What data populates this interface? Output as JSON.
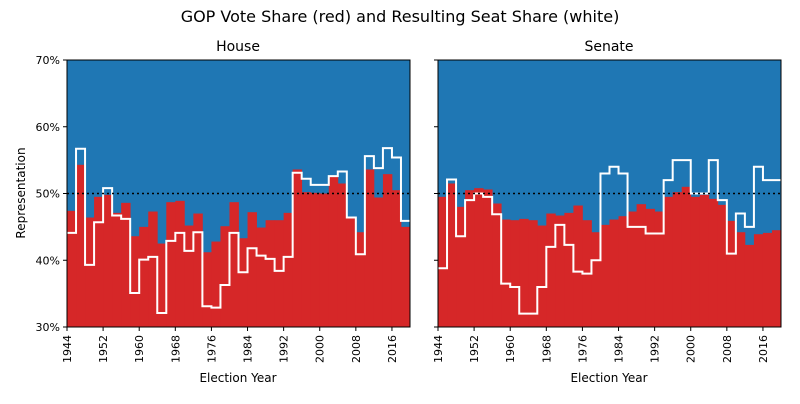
{
  "title": "GOP Vote Share (red) and Resulting Seat Share (white)",
  "colors": {
    "vote": "#d62728",
    "background": "#1f77b4",
    "seat": "#ffffff",
    "reference": "#000000"
  },
  "chart_data": [
    {
      "type": "area",
      "title": "House",
      "xlabel": "Election Year",
      "ylabel": "Representation",
      "xlim": [
        1944,
        2020
      ],
      "ylim": [
        30,
        70
      ],
      "xticks": [
        "1944",
        "1952",
        "1960",
        "1968",
        "1976",
        "1984",
        "1992",
        "2000",
        "2008",
        "2016"
      ],
      "yticks": [
        "30%",
        "40%",
        "50%",
        "60%",
        "70%"
      ],
      "reference_line": 50,
      "x": [
        1944,
        1946,
        1948,
        1950,
        1952,
        1954,
        1956,
        1958,
        1960,
        1962,
        1964,
        1966,
        1968,
        1970,
        1972,
        1974,
        1976,
        1978,
        1980,
        1982,
        1984,
        1986,
        1988,
        1990,
        1992,
        1994,
        1996,
        1998,
        2000,
        2002,
        2004,
        2006,
        2008,
        2010,
        2012,
        2014,
        2016,
        2018
      ],
      "series": [
        {
          "name": "GOP Vote Share",
          "values": [
            47.4,
            54.3,
            46.4,
            49.5,
            49.8,
            47.1,
            48.6,
            43.6,
            45.0,
            47.3,
            42.5,
            48.7,
            48.9,
            45.2,
            47.0,
            41.2,
            42.8,
            45.1,
            48.7,
            43.3,
            47.2,
            44.9,
            46.0,
            46.0,
            47.1,
            53.6,
            50.2,
            50.1,
            50.0,
            52.7,
            51.5,
            46.3,
            44.2,
            53.6,
            49.4,
            52.9,
            50.5,
            45.0
          ]
        },
        {
          "name": "Resulting Seat Share",
          "values": [
            44.1,
            56.7,
            39.3,
            45.7,
            50.8,
            46.7,
            46.2,
            35.1,
            40.1,
            40.5,
            32.1,
            42.9,
            44.1,
            41.4,
            44.2,
            33.1,
            32.9,
            36.3,
            44.1,
            38.2,
            41.8,
            40.7,
            40.2,
            38.4,
            40.5,
            53.1,
            52.2,
            51.3,
            51.3,
            52.6,
            53.3,
            46.4,
            40.9,
            55.6,
            53.8,
            56.8,
            55.4,
            45.9
          ]
        }
      ]
    },
    {
      "type": "area",
      "title": "Senate",
      "xlabel": "Election Year",
      "ylabel": "",
      "xlim": [
        1944,
        2020
      ],
      "ylim": [
        30,
        70
      ],
      "xticks": [
        "1944",
        "1952",
        "1960",
        "1968",
        "1976",
        "1984",
        "1992",
        "2000",
        "2008",
        "2016"
      ],
      "yticks": [
        "30%",
        "40%",
        "50%",
        "60%",
        "70%"
      ],
      "reference_line": 50,
      "x": [
        1944,
        1946,
        1948,
        1950,
        1952,
        1954,
        1956,
        1958,
        1960,
        1962,
        1964,
        1966,
        1968,
        1970,
        1972,
        1974,
        1976,
        1978,
        1980,
        1982,
        1984,
        1986,
        1988,
        1990,
        1992,
        1994,
        1996,
        1998,
        2000,
        2002,
        2004,
        2006,
        2008,
        2010,
        2012,
        2014,
        2016,
        2018
      ],
      "series": [
        {
          "name": "GOP Vote Share",
          "values": [
            49.5,
            51.5,
            48.0,
            50.5,
            50.8,
            50.6,
            48.5,
            46.1,
            46.0,
            46.2,
            46.0,
            45.2,
            47.0,
            46.7,
            47.1,
            48.2,
            46.0,
            44.2,
            45.3,
            46.1,
            46.6,
            47.3,
            48.4,
            47.7,
            47.3,
            49.5,
            50.2,
            51.0,
            49.5,
            49.8,
            49.2,
            48.3,
            45.9,
            44.2,
            42.3,
            43.9,
            44.1,
            44.5
          ]
        },
        {
          "name": "Resulting Seat Share",
          "values": [
            38.8,
            52.1,
            43.6,
            49.0,
            50.0,
            49.5,
            46.9,
            36.5,
            36.0,
            32.0,
            32.0,
            36.0,
            42.0,
            45.3,
            42.3,
            38.3,
            38.0,
            40.0,
            53.0,
            54.0,
            53.0,
            45.0,
            45.0,
            44.0,
            44.0,
            52.0,
            55.0,
            55.0,
            50.0,
            50.0,
            55.0,
            49.0,
            41.0,
            47.0,
            45.0,
            54.0,
            52.0,
            52.0
          ]
        }
      ]
    }
  ]
}
